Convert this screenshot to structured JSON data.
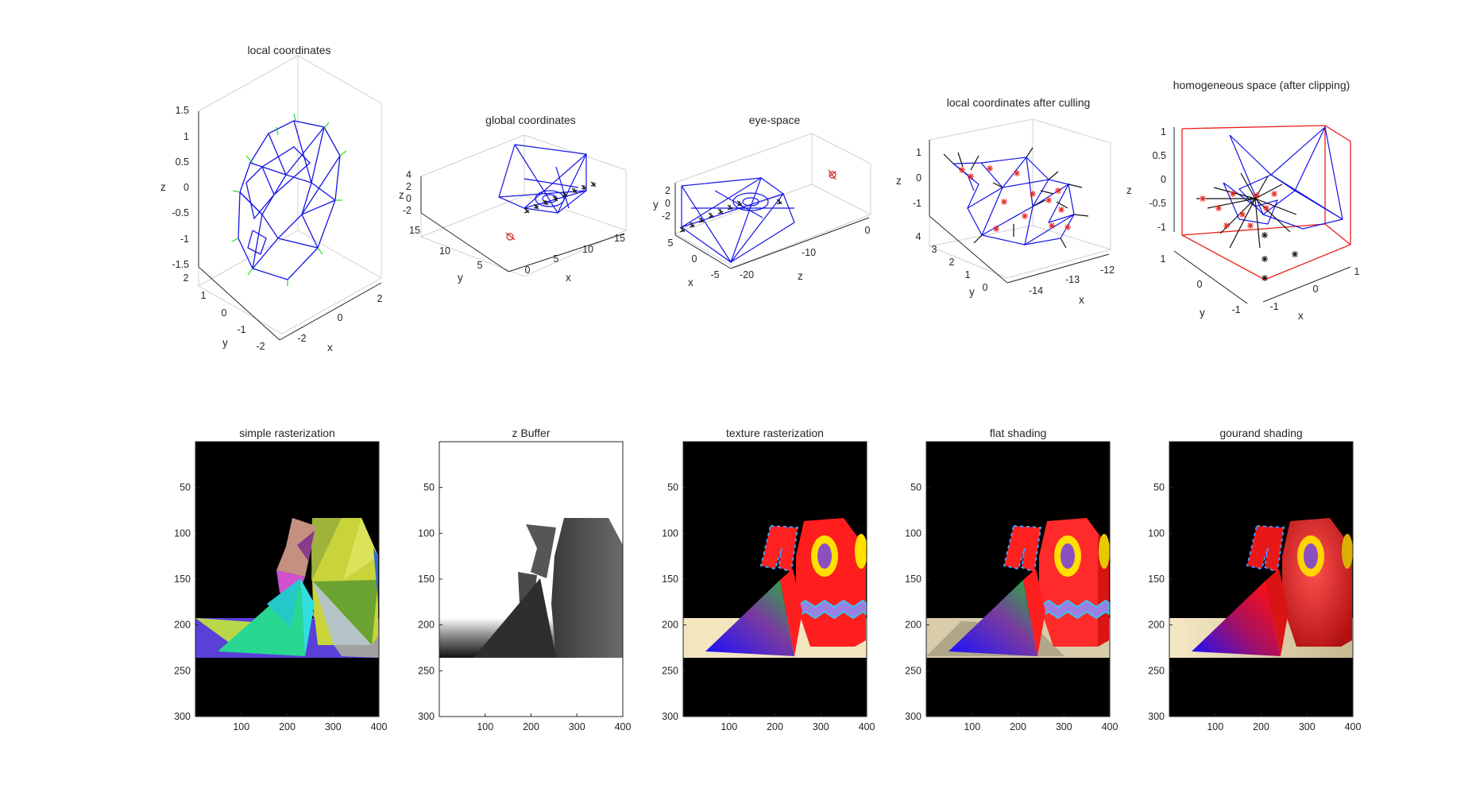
{
  "figure_bg": "#ffffff",
  "chart_data": [
    {
      "type": "3d-wireframe",
      "title": "local coordinates",
      "xlabel": "x",
      "ylabel": "y",
      "zlabel": "z",
      "x_ticks": [
        "-2",
        "0",
        "2"
      ],
      "y_ticks": [
        "-2",
        "-1",
        "0",
        "1",
        "2"
      ],
      "z_ticks": [
        "-1.5",
        "-1",
        "-0.5",
        "0",
        "0.5",
        "1",
        "1.5"
      ],
      "mesh_color": "#1414e6",
      "normals_color": "#22dd22"
    },
    {
      "type": "3d-wireframe",
      "title": "global coordinates",
      "xlabel": "x",
      "ylabel": "y",
      "zlabel": "z",
      "x_ticks": [
        "0",
        "5",
        "10",
        "15"
      ],
      "y_ticks": [
        "5",
        "10",
        "15"
      ],
      "z_ticks": [
        "-2",
        "0",
        "2",
        "4"
      ],
      "mesh_color": "#1414e6",
      "markers_color": "#111111",
      "camera_color": "#d62728"
    },
    {
      "type": "3d-wireframe",
      "title": "eye-space",
      "xlabel": "x",
      "ylabel": "y",
      "zlabel": "z",
      "x_ticks": [
        "-5",
        "0",
        "5"
      ],
      "y_ticks": [
        "-2",
        "0",
        "2"
      ],
      "z_ticks": [
        "-20",
        "-10",
        "0"
      ],
      "mesh_color": "#1414e6",
      "markers_color": "#111111",
      "camera_color": "#d62728"
    },
    {
      "type": "3d-wireframe",
      "title": "local coordinates after culling",
      "xlabel": "x",
      "ylabel": "y",
      "zlabel": "z",
      "x_ticks": [
        "-14",
        "-13",
        "-12"
      ],
      "y_ticks": [
        "0",
        "1",
        "2",
        "3",
        "4"
      ],
      "z_ticks": [
        "-1",
        "0",
        "1"
      ],
      "mesh_color": "#1414e6",
      "markers_color": "#e8201a",
      "normals_color": "#111111"
    },
    {
      "type": "3d-wireframe",
      "title": "homogeneous space (after clipping)",
      "xlabel": "x",
      "ylabel": "y",
      "zlabel": "z",
      "x_ticks": [
        "-1",
        "0",
        "1"
      ],
      "y_ticks": [
        "-1",
        "0",
        "1"
      ],
      "z_ticks": [
        "-1",
        "-0.5",
        "0",
        "0.5",
        "1"
      ],
      "mesh_color": "#1414e6",
      "box_color": "#e8201a",
      "markers_color": "#e8201a"
    },
    {
      "type": "image",
      "title": "simple rasterization",
      "bg": "#000000",
      "x_ticks": [
        100,
        200,
        300,
        400
      ],
      "y_ticks": [
        50,
        100,
        150,
        200,
        250,
        300
      ],
      "xlim": [
        0,
        400
      ],
      "ylim": [
        0,
        300
      ]
    },
    {
      "type": "image",
      "title": "z Buffer",
      "bg": "#ffffff",
      "x_ticks": [
        100,
        200,
        300,
        400
      ],
      "y_ticks": [
        50,
        100,
        150,
        200,
        250,
        300
      ],
      "xlim": [
        0,
        400
      ],
      "ylim": [
        0,
        300
      ]
    },
    {
      "type": "image",
      "title": "texture rasterization",
      "bg": "#000000",
      "x_ticks": [
        100,
        200,
        300,
        400
      ],
      "y_ticks": [
        50,
        100,
        150,
        200,
        250,
        300
      ],
      "xlim": [
        0,
        400
      ],
      "ylim": [
        0,
        300
      ]
    },
    {
      "type": "image",
      "title": "flat shading",
      "bg": "#000000",
      "x_ticks": [
        100,
        200,
        300,
        400
      ],
      "y_ticks": [
        50,
        100,
        150,
        200,
        250,
        300
      ],
      "xlim": [
        0,
        400
      ],
      "ylim": [
        0,
        300
      ]
    },
    {
      "type": "image",
      "title": "gourand shading",
      "bg": "#000000",
      "x_ticks": [
        100,
        200,
        300,
        400
      ],
      "y_ticks": [
        50,
        100,
        150,
        200,
        250,
        300
      ],
      "xlim": [
        0,
        400
      ],
      "ylim": [
        0,
        300
      ]
    }
  ]
}
